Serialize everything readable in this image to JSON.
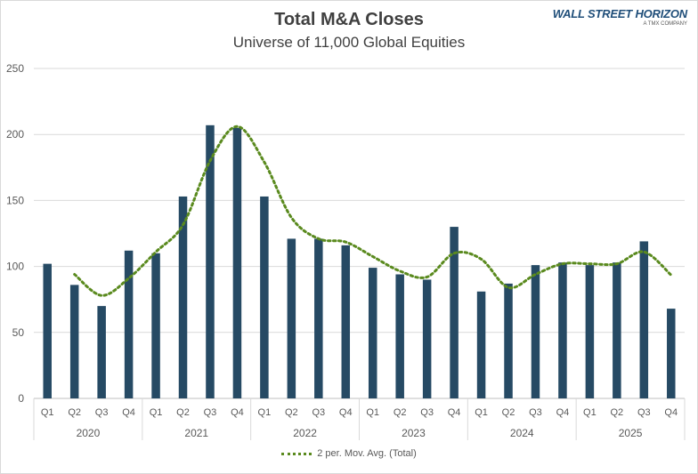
{
  "chart_data": {
    "type": "bar",
    "title": "Total M&A Closes",
    "subtitle": "Universe of 11,000 Global Equities",
    "years": [
      "2020",
      "2021",
      "2022",
      "2023",
      "2024",
      "2025"
    ],
    "quarters": [
      "Q1",
      "Q2",
      "Q3",
      "Q4"
    ],
    "categories": [
      "2020 Q1",
      "2020 Q2",
      "2020 Q3",
      "2020 Q4",
      "2021 Q1",
      "2021 Q2",
      "2021 Q3",
      "2021 Q4",
      "2022 Q1",
      "2022 Q2",
      "2022 Q3",
      "2022 Q4",
      "2023 Q1",
      "2023 Q2",
      "2023 Q3",
      "2023 Q4",
      "2024 Q1",
      "2024 Q2",
      "2024 Q3",
      "2024 Q4",
      "2025 Q1",
      "2025 Q2",
      "2025 Q3",
      "2025 Q4"
    ],
    "values": [
      102,
      86,
      70,
      112,
      110,
      153,
      207,
      205,
      153,
      121,
      121,
      116,
      99,
      94,
      90,
      130,
      81,
      87,
      101,
      103,
      101,
      103,
      119,
      68
    ],
    "moving_average": {
      "name": "2 per. Mov. Avg. (Total)",
      "period": 2
    },
    "ylim": [
      0,
      250
    ],
    "yticks": [
      0,
      50,
      100,
      150,
      200,
      250
    ],
    "grid": true,
    "legend_position": "bottom",
    "bar_color": "#264a64",
    "line_color": "#5a8a1e"
  },
  "logo": {
    "name": "WALL STREET HORIZON",
    "tagline": "A TMX COMPANY"
  }
}
